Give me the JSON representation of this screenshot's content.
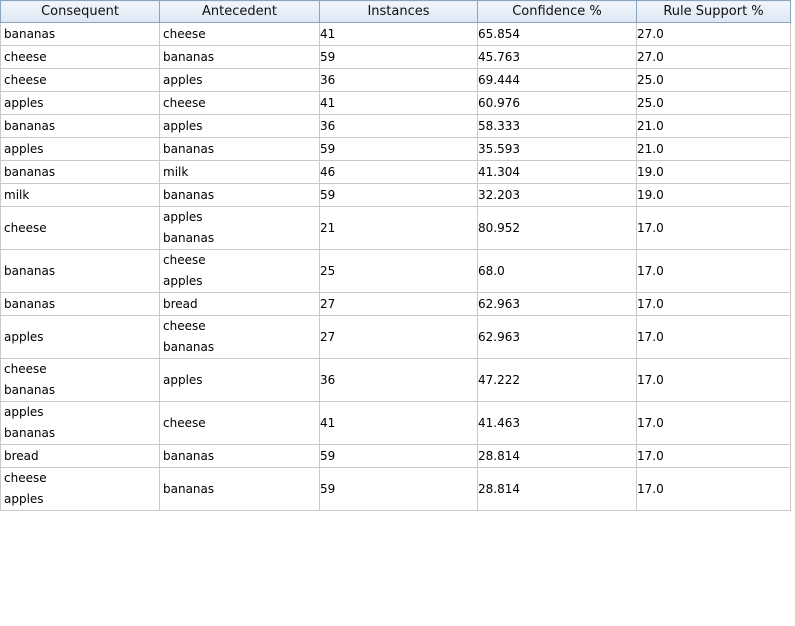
{
  "table": {
    "headers": [
      "Consequent",
      "Antecedent",
      "Instances",
      "Confidence %",
      "Rule Support %"
    ],
    "rows": [
      {
        "consequent": [
          "bananas"
        ],
        "antecedent": [
          "cheese"
        ],
        "instances": "41",
        "confidence": "65.854",
        "support": "27.0"
      },
      {
        "consequent": [
          "cheese"
        ],
        "antecedent": [
          "bananas"
        ],
        "instances": "59",
        "confidence": "45.763",
        "support": "27.0"
      },
      {
        "consequent": [
          "cheese"
        ],
        "antecedent": [
          "apples"
        ],
        "instances": "36",
        "confidence": "69.444",
        "support": "25.0"
      },
      {
        "consequent": [
          "apples"
        ],
        "antecedent": [
          "cheese"
        ],
        "instances": "41",
        "confidence": "60.976",
        "support": "25.0"
      },
      {
        "consequent": [
          "bananas"
        ],
        "antecedent": [
          "apples"
        ],
        "instances": "36",
        "confidence": "58.333",
        "support": "21.0"
      },
      {
        "consequent": [
          "apples"
        ],
        "antecedent": [
          "bananas"
        ],
        "instances": "59",
        "confidence": "35.593",
        "support": "21.0"
      },
      {
        "consequent": [
          "bananas"
        ],
        "antecedent": [
          "milk"
        ],
        "instances": "46",
        "confidence": "41.304",
        "support": "19.0"
      },
      {
        "consequent": [
          "milk"
        ],
        "antecedent": [
          "bananas"
        ],
        "instances": "59",
        "confidence": "32.203",
        "support": "19.0"
      },
      {
        "consequent": [
          "cheese"
        ],
        "antecedent": [
          "apples",
          "bananas"
        ],
        "instances": "21",
        "confidence": "80.952",
        "support": "17.0"
      },
      {
        "consequent": [
          "bananas"
        ],
        "antecedent": [
          "cheese",
          "apples"
        ],
        "instances": "25",
        "confidence": "68.0",
        "support": "17.0"
      },
      {
        "consequent": [
          "bananas"
        ],
        "antecedent": [
          "bread"
        ],
        "instances": "27",
        "confidence": "62.963",
        "support": "17.0"
      },
      {
        "consequent": [
          "apples"
        ],
        "antecedent": [
          "cheese",
          "bananas"
        ],
        "instances": "27",
        "confidence": "62.963",
        "support": "17.0"
      },
      {
        "consequent": [
          "cheese",
          "bananas"
        ],
        "antecedent": [
          "apples"
        ],
        "instances": "36",
        "confidence": "47.222",
        "support": "17.0"
      },
      {
        "consequent": [
          "apples",
          "bananas"
        ],
        "antecedent": [
          "cheese"
        ],
        "instances": "41",
        "confidence": "41.463",
        "support": "17.0"
      },
      {
        "consequent": [
          "bread"
        ],
        "antecedent": [
          "bananas"
        ],
        "instances": "59",
        "confidence": "28.814",
        "support": "17.0"
      },
      {
        "consequent": [
          "cheese",
          "apples"
        ],
        "antecedent": [
          "bananas"
        ],
        "instances": "59",
        "confidence": "28.814",
        "support": "17.0"
      }
    ]
  }
}
